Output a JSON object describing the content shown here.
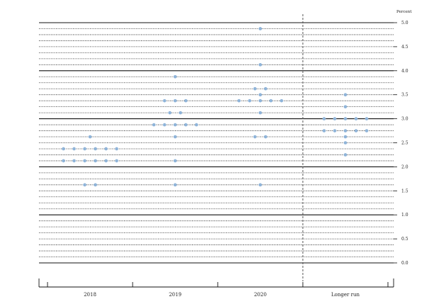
{
  "chart_data": {
    "type": "scatter",
    "title": "",
    "ylabel": "Percent",
    "xlabel": "",
    "ylim": [
      0,
      5
    ],
    "ytick_step": 0.125,
    "ytick_labels": [
      "0.0",
      "0.5",
      "1.0",
      "1.5",
      "2.0",
      "2.5",
      "3.0",
      "3.5",
      "4.0",
      "4.5",
      "5.0"
    ],
    "categories": [
      "2018",
      "2019",
      "2020",
      "Longer run"
    ],
    "dot_color": "#8fb4d9",
    "divider_between": [
      "2020",
      "Longer run"
    ],
    "points": [
      {
        "category": "2018",
        "y": 1.625,
        "count": 2
      },
      {
        "category": "2018",
        "y": 2.125,
        "count": 6
      },
      {
        "category": "2018",
        "y": 2.375,
        "count": 6
      },
      {
        "category": "2018",
        "y": 2.625,
        "count": 1
      },
      {
        "category": "2019",
        "y": 1.625,
        "count": 1
      },
      {
        "category": "2019",
        "y": 2.125,
        "count": 1
      },
      {
        "category": "2019",
        "y": 2.625,
        "count": 1
      },
      {
        "category": "2019",
        "y": 2.875,
        "count": 5
      },
      {
        "category": "2019",
        "y": 3.125,
        "count": 2
      },
      {
        "category": "2019",
        "y": 3.375,
        "count": 3
      },
      {
        "category": "2019",
        "y": 3.875,
        "count": 1
      },
      {
        "category": "2020",
        "y": 1.625,
        "count": 1
      },
      {
        "category": "2020",
        "y": 2.625,
        "count": 2
      },
      {
        "category": "2020",
        "y": 3.125,
        "count": 1
      },
      {
        "category": "2020",
        "y": 3.375,
        "count": 5
      },
      {
        "category": "2020",
        "y": 3.5,
        "count": 1
      },
      {
        "category": "2020",
        "y": 3.625,
        "count": 2
      },
      {
        "category": "2020",
        "y": 4.125,
        "count": 1
      },
      {
        "category": "2020",
        "y": 4.875,
        "count": 1
      },
      {
        "category": "Longer run",
        "y": 2.25,
        "count": 1
      },
      {
        "category": "Longer run",
        "y": 2.5,
        "count": 1
      },
      {
        "category": "Longer run",
        "y": 2.625,
        "count": 1
      },
      {
        "category": "Longer run",
        "y": 2.75,
        "count": 5
      },
      {
        "category": "Longer run",
        "y": 3.0,
        "count": 5
      },
      {
        "category": "Longer run",
        "y": 3.25,
        "count": 1
      },
      {
        "category": "Longer run",
        "y": 3.5,
        "count": 1
      }
    ]
  }
}
